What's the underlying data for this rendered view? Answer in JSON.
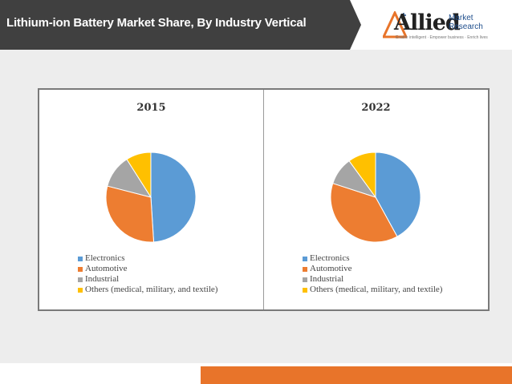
{
  "header": {
    "title": "Lithium-ion Battery Market Share, By Industry Vertical",
    "band_color": "#404040"
  },
  "logo": {
    "name": "Allied",
    "line1": "Market",
    "line2": "Research",
    "tagline": "Enable intelligent · Empower business · Enrich lives"
  },
  "colors": {
    "Electronics": "#5b9bd5",
    "Automotive": "#ed7d31",
    "Industrial": "#a5a5a5",
    "Others": "#ffc000",
    "accent": "#e8742a"
  },
  "chart_data": [
    {
      "type": "pie",
      "title": "2015",
      "labels": [
        "Electronics",
        "Automotive",
        "Industrial",
        "Others (medical, military, and textile)"
      ],
      "values": [
        49,
        30,
        12,
        9
      ]
    },
    {
      "type": "pie",
      "title": "2022",
      "labels": [
        "Electronics",
        "Automotive",
        "Industrial",
        "Others (medical, military, and textile)"
      ],
      "values": [
        42,
        38,
        10,
        10
      ]
    }
  ]
}
